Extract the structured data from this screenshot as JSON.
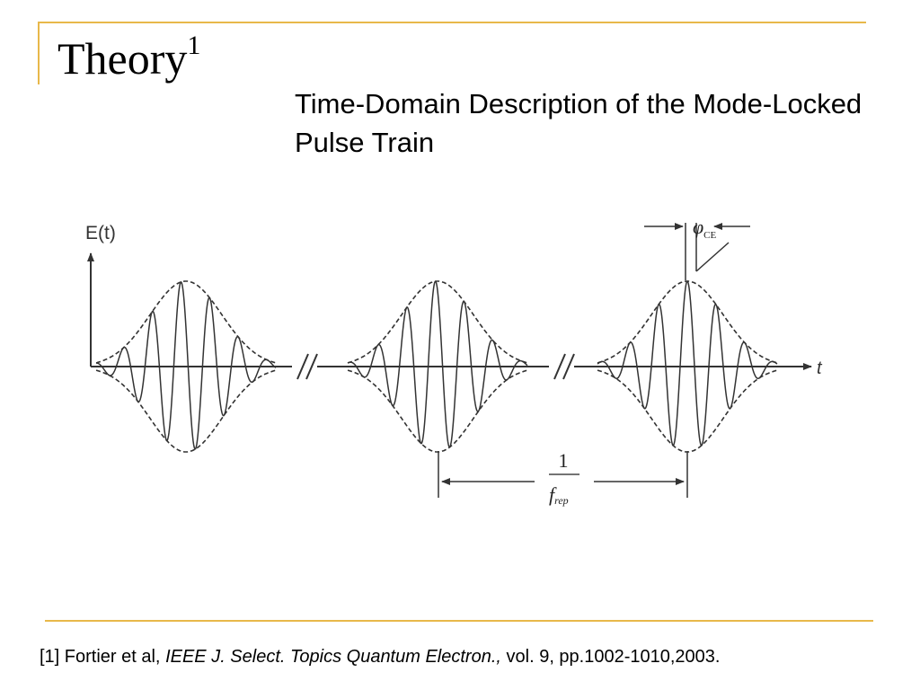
{
  "slide": {
    "title": "Theory",
    "title_superscript": "1",
    "subtitle": "Time-Domain Description of the Mode-Locked Pulse Train",
    "accent_color": "#e8b84a"
  },
  "figure": {
    "y_axis_label": "E(t)",
    "x_axis_label": "t",
    "phase_label": "φ",
    "phase_subscript": "CE",
    "period_numerator": "1",
    "period_denominator": "f",
    "period_subscript": "rep",
    "axis_break_marks": 2,
    "pulse_count": 3
  },
  "reference": {
    "prefix": "[1] Fortier et al, ",
    "journal": "IEEE J. Select. Topics Quantum Electron.,",
    "suffix": " vol. 9, pp.1002-1010,2003."
  }
}
